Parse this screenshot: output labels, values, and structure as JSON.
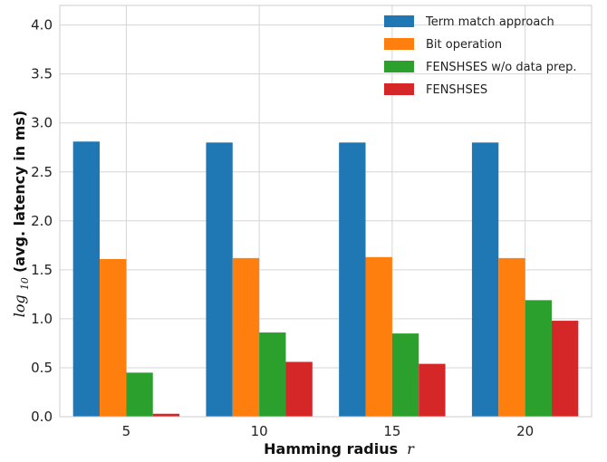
{
  "chart_data": {
    "type": "bar",
    "xlabel_bold": "Hamming radius",
    "xlabel_italic": "r",
    "ylabel_prefix": "log",
    "ylabel_sub": "10",
    "ylabel_bold": "(avg. latency in ms)",
    "categories": [
      "5",
      "10",
      "15",
      "20"
    ],
    "ylim": [
      0,
      4.2
    ],
    "yticks": [
      "0.0",
      "0.5",
      "1.0",
      "1.5",
      "2.0",
      "2.5",
      "3.0",
      "3.5",
      "4.0"
    ],
    "grid": true,
    "legend_position": "top-right",
    "series": [
      {
        "name": "Term match approach",
        "color": "#1f77b4",
        "values": [
          2.81,
          2.8,
          2.8,
          2.8
        ]
      },
      {
        "name": "Bit operation",
        "color": "#ff7f0e",
        "values": [
          1.61,
          1.62,
          1.63,
          1.62
        ]
      },
      {
        "name": "FENSHSES w/o data prep.",
        "color": "#2ca02c",
        "values": [
          0.45,
          0.86,
          0.85,
          1.19
        ]
      },
      {
        "name": "FENSHSES",
        "color": "#d62728",
        "values": [
          0.03,
          0.56,
          0.54,
          0.98
        ]
      }
    ]
  }
}
